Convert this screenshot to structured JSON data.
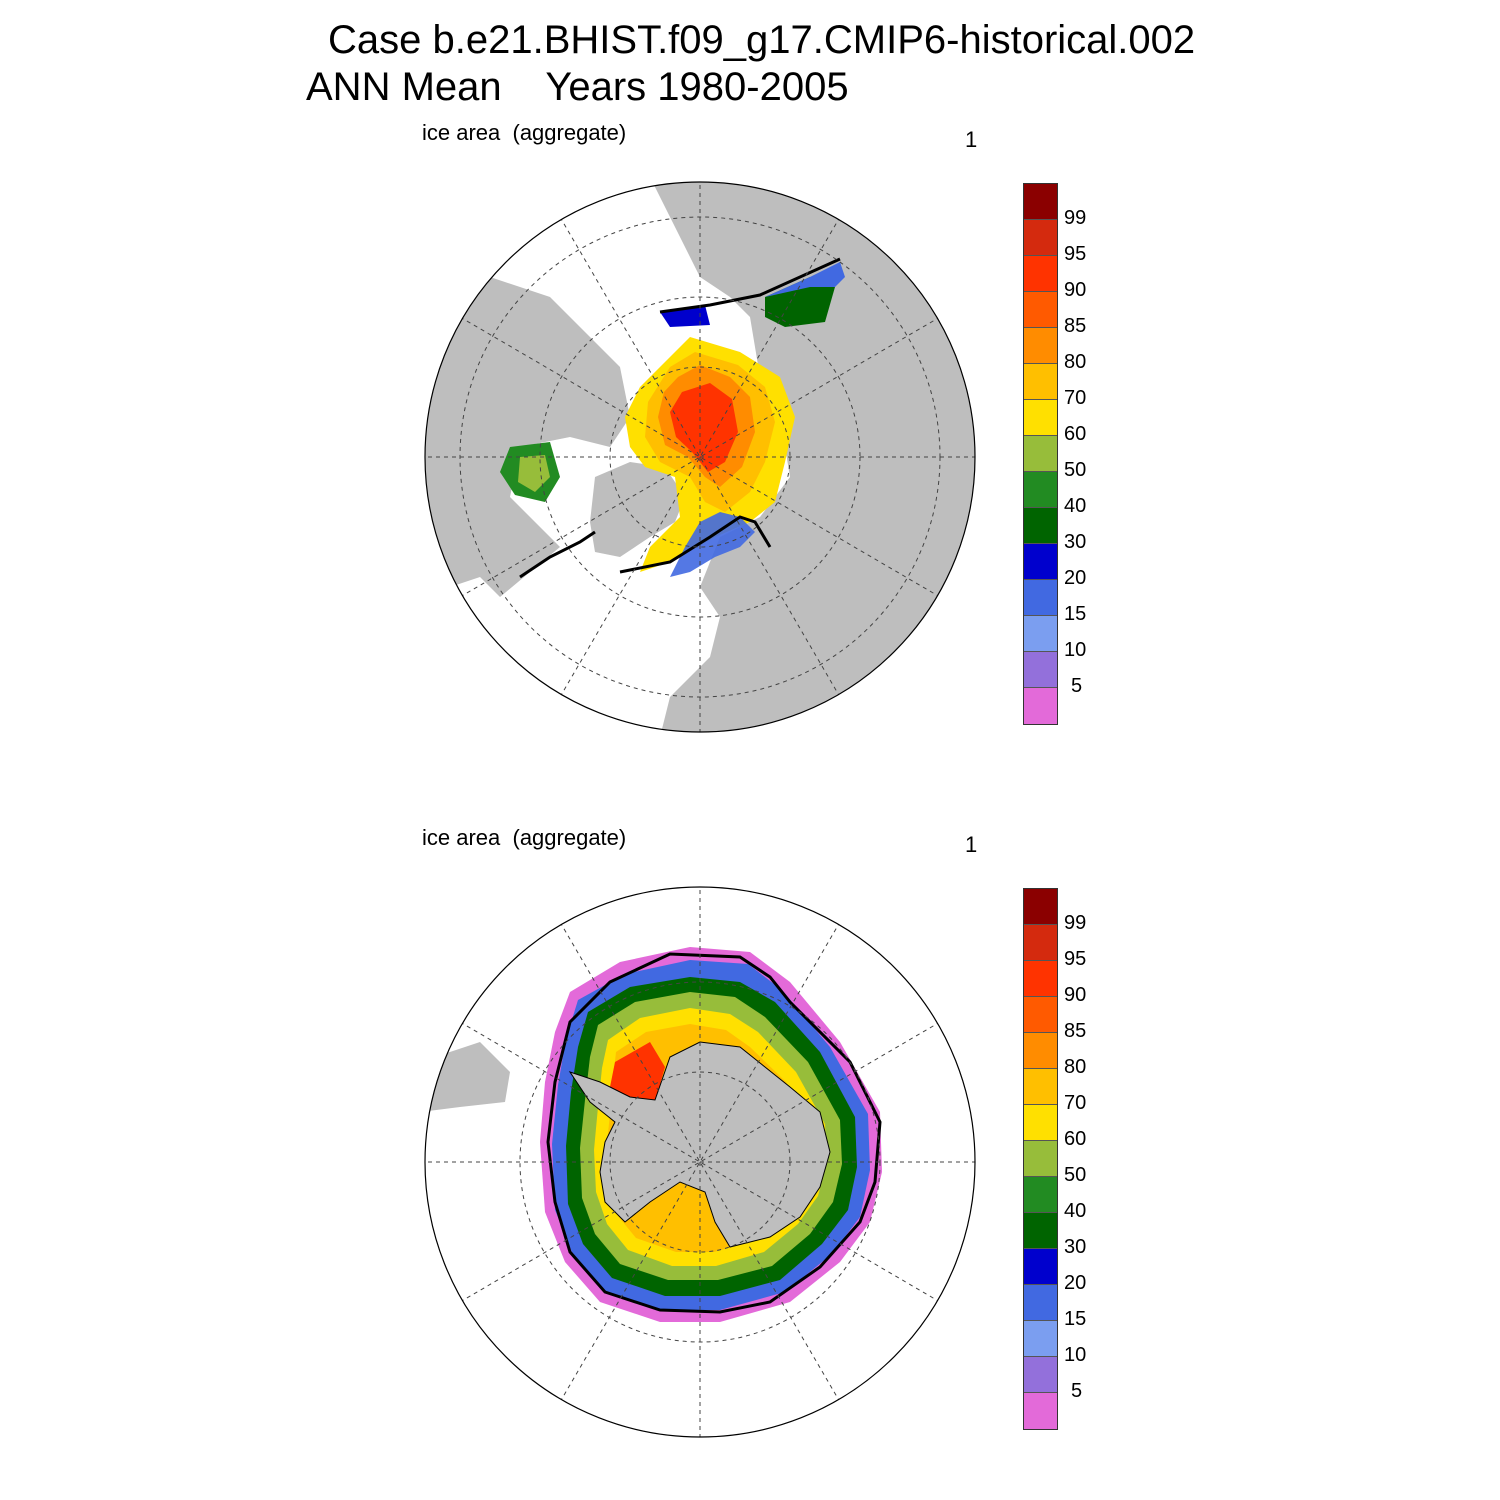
{
  "header": {
    "title_line1": "Case b.e21.BHIST.f09_g17.CMIP6-historical.002",
    "title_line2": "ANN Mean    Years 1980-2005"
  },
  "panels": [
    {
      "label": "ice area  (aggregate)",
      "number": "1",
      "hemisphere": "north"
    },
    {
      "label": "ice area  (aggregate)",
      "number": "1",
      "hemisphere": "south"
    }
  ],
  "colorbar": {
    "labels": [
      "99",
      "95",
      "90",
      "85",
      "80",
      "70",
      "60",
      "50",
      "40",
      "30",
      "20",
      "15",
      "10",
      "5"
    ],
    "colors": [
      "#8b0000",
      "#d42a0e",
      "#ff3300",
      "#ff5a00",
      "#ff8c00",
      "#ffbf00",
      "#ffe000",
      "#97bd3a",
      "#228b22",
      "#006400",
      "#0000cd",
      "#4169e1",
      "#7b9ef0",
      "#9370db",
      "#e36ad9"
    ]
  },
  "map_colors": {
    "land": "#bebebe",
    "ocean": "#ffffff",
    "grid": "#444444",
    "ice_edge": "#000000"
  }
}
